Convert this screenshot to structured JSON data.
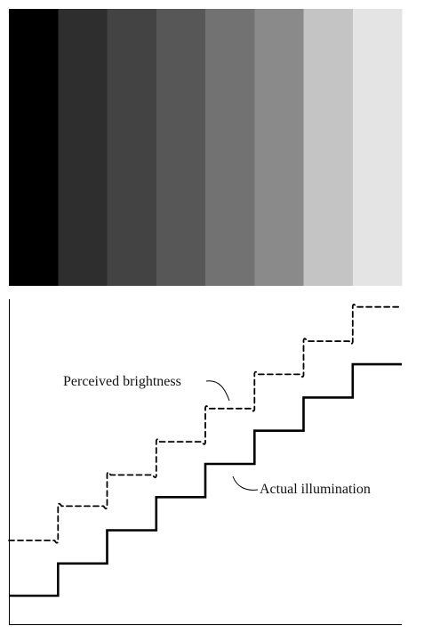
{
  "mach_bands": {
    "gray_levels": [
      "#000000",
      "#2e2e2e",
      "#434343",
      "#575757",
      "#727272",
      "#8a8a8a",
      "#c4c4c4",
      "#e4e4e4"
    ]
  },
  "diagram": {
    "actual_levels": [
      0.0,
      0.064,
      0.13,
      0.196,
      0.262,
      0.328,
      0.394,
      0.46
    ],
    "perceived_levels": [
      0.11,
      0.178,
      0.24,
      0.306,
      0.372,
      0.44,
      0.506,
      0.574
    ],
    "labels": {
      "perceived": "Perceived brightness",
      "actual": "Actual illumination"
    }
  }
}
